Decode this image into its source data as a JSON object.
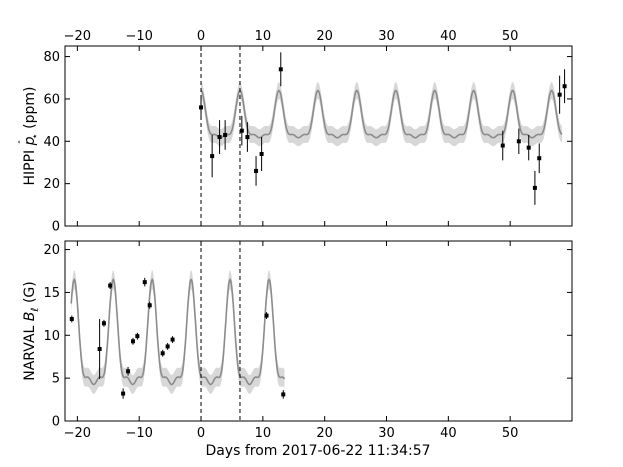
{
  "chart_data": [
    {
      "type": "line",
      "panel": "top",
      "ylabel": "HIPPI p̂⋆ (ppm)",
      "ylabel_main": "HIPPI ",
      "ylabel_symbol": "p",
      "ylabel_hat": "ˆ",
      "ylabel_sub": "⋆",
      "ylabel_unit": " (ppm)",
      "xlim": [
        -22,
        60
      ],
      "ylim": [
        0,
        85
      ],
      "xticks": [
        -20,
        -10,
        0,
        10,
        20,
        30,
        40,
        50
      ],
      "xtick_labels": [
        "−20",
        "−10",
        "0",
        "10",
        "20",
        "30",
        "40",
        "50"
      ],
      "yticks": [
        0,
        20,
        40,
        60,
        80
      ],
      "ytick_labels": [
        "0",
        "20",
        "40",
        "60",
        "80"
      ],
      "top_axis_labels": true,
      "bottom_axis_labels": false,
      "grid": false,
      "vlines": [
        0,
        6.3
      ],
      "model": {
        "x_start": 0,
        "x_end": 58.5,
        "period": 6.3,
        "peak_phase": 0.0,
        "min": 39,
        "max": 64,
        "band_halfwidth": 4
      },
      "series": [
        {
          "style": "errorbar",
          "points": [
            {
              "x": 0.0,
              "y": 56,
              "err": 5
            },
            {
              "x": 1.8,
              "y": 33,
              "err": 10
            },
            {
              "x": 3.0,
              "y": 42,
              "err": 8
            },
            {
              "x": 3.9,
              "y": 43,
              "err": 7
            },
            {
              "x": 6.6,
              "y": 45,
              "err": 7
            },
            {
              "x": 7.5,
              "y": 42,
              "err": 7
            },
            {
              "x": 8.9,
              "y": 26,
              "err": 7
            },
            {
              "x": 9.8,
              "y": 34,
              "err": 8
            },
            {
              "x": 12.9,
              "y": 74,
              "err": 8
            },
            {
              "x": 48.8,
              "y": 38,
              "err": 7
            },
            {
              "x": 51.4,
              "y": 40,
              "err": 6
            },
            {
              "x": 53.0,
              "y": 37,
              "err": 6
            },
            {
              "x": 54.0,
              "y": 18,
              "err": 8
            },
            {
              "x": 54.7,
              "y": 32,
              "err": 7
            },
            {
              "x": 58.0,
              "y": 62,
              "err": 9
            },
            {
              "x": 58.8,
              "y": 66,
              "err": 8
            }
          ]
        }
      ]
    },
    {
      "type": "line",
      "panel": "bottom",
      "ylabel": "NARVAL Bℓ (G)",
      "ylabel_main": "NARVAL ",
      "ylabel_symbol": "B",
      "ylabel_sub": "ℓ",
      "ylabel_unit": " (G)",
      "xlabel": "Days from 2017-06-22 11:34:57",
      "xlim": [
        -22,
        60
      ],
      "ylim": [
        0,
        21
      ],
      "xticks": [
        -20,
        -10,
        0,
        10,
        20,
        30,
        40,
        50
      ],
      "xtick_labels": [
        "−20",
        "−10",
        "0",
        "10",
        "20",
        "30",
        "40",
        "50"
      ],
      "yticks": [
        0,
        5,
        10,
        15,
        20
      ],
      "ytick_labels": [
        "0",
        "5",
        "10",
        "15",
        "20"
      ],
      "top_axis_labels": false,
      "bottom_axis_labels": true,
      "grid": false,
      "vlines": [
        0,
        6.3
      ],
      "model": {
        "x_start": -21,
        "x_end": 13.5,
        "period": 6.3,
        "peak_phase": -1.6,
        "min": 2.8,
        "max": 16.5,
        "band_halfwidth": 1.1
      },
      "series": [
        {
          "style": "errorbar",
          "points": [
            {
              "x": -20.9,
              "y": 11.9,
              "err": 0.4
            },
            {
              "x": -16.4,
              "y": 8.4,
              "err": 3.5
            },
            {
              "x": -15.7,
              "y": 11.4,
              "err": 0.4
            },
            {
              "x": -14.7,
              "y": 15.8,
              "err": 0.4
            },
            {
              "x": -12.6,
              "y": 3.2,
              "err": 0.6
            },
            {
              "x": -11.8,
              "y": 5.8,
              "err": 0.5
            },
            {
              "x": -11.0,
              "y": 9.3,
              "err": 0.4
            },
            {
              "x": -10.3,
              "y": 9.9,
              "err": 0.4
            },
            {
              "x": -9.1,
              "y": 16.2,
              "err": 0.5
            },
            {
              "x": -8.3,
              "y": 13.5,
              "err": 0.4
            },
            {
              "x": -6.2,
              "y": 7.9,
              "err": 0.4
            },
            {
              "x": -5.4,
              "y": 8.7,
              "err": 0.4
            },
            {
              "x": -4.6,
              "y": 9.5,
              "err": 0.4
            },
            {
              "x": 10.6,
              "y": 12.3,
              "err": 0.4
            },
            {
              "x": 13.3,
              "y": 3.1,
              "err": 0.5
            }
          ]
        }
      ]
    }
  ]
}
